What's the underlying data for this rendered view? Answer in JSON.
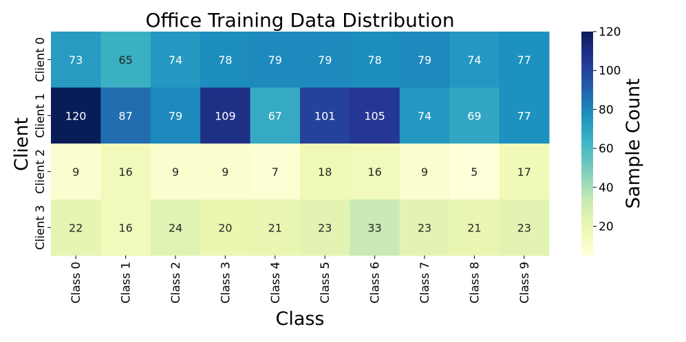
{
  "chart_data": {
    "type": "heatmap",
    "title": "Office Training Data Distribution",
    "xlabel": "Class",
    "ylabel": "Client",
    "x_categories": [
      "Class 0",
      "Class 1",
      "Class 2",
      "Class 3",
      "Class 4",
      "Class 5",
      "Class 6",
      "Class 7",
      "Class 8",
      "Class 9"
    ],
    "y_categories": [
      "Client 0",
      "Client 1",
      "Client 2",
      "Client 3"
    ],
    "values": [
      [
        73,
        65,
        74,
        78,
        79,
        79,
        78,
        79,
        74,
        77
      ],
      [
        120,
        87,
        79,
        109,
        67,
        101,
        105,
        74,
        69,
        77
      ],
      [
        9,
        16,
        9,
        9,
        7,
        18,
        16,
        9,
        5,
        17
      ],
      [
        22,
        16,
        24,
        20,
        21,
        23,
        33,
        23,
        21,
        23
      ]
    ],
    "colorbar": {
      "label": "Sample Count",
      "range": [
        5,
        120
      ],
      "ticks": [
        20,
        40,
        60,
        80,
        100,
        120
      ],
      "colormap": "YlGnBu"
    }
  }
}
